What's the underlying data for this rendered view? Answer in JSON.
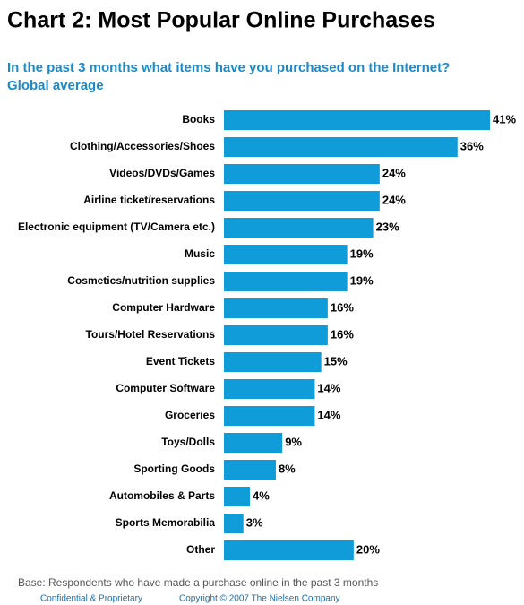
{
  "chart_data": {
    "type": "bar",
    "orientation": "horizontal",
    "title": "Chart 2: Most Popular Online Purchases",
    "subtitle": [
      "In the past 3 months what items have you purchased on the Internet?",
      "Global average"
    ],
    "categories": [
      "Books",
      "Clothing/Accessories/Shoes",
      "Videos/DVDs/Games",
      "Airline ticket/reservations",
      "Electronic equipment (TV/Camera etc.)",
      "Music",
      "Cosmetics/nutrition supplies",
      "Computer Hardware",
      "Tours/Hotel Reservations",
      "Event Tickets",
      "Computer Software",
      "Groceries",
      "Toys/Dolls",
      "Sporting Goods",
      "Automobiles & Parts",
      "Sports Memorabilia",
      "Other"
    ],
    "values": [
      41,
      36,
      24,
      24,
      23,
      19,
      19,
      16,
      16,
      15,
      14,
      14,
      9,
      8,
      4,
      3,
      20
    ],
    "value_labels": [
      "41%",
      "36%",
      "24%",
      "24%",
      "23%",
      "19%",
      "19%",
      "16%",
      "16%",
      "15%",
      "14%",
      "14%",
      "9%",
      "8%",
      "4%",
      "3%",
      "20%"
    ],
    "color": "#0f9cd8",
    "note": "Base: Respondents who have made a purchase online in the past 3 months",
    "footer": [
      "Confidential & Proprietary",
      "Copyright © 2007 The Nielsen Company"
    ]
  }
}
